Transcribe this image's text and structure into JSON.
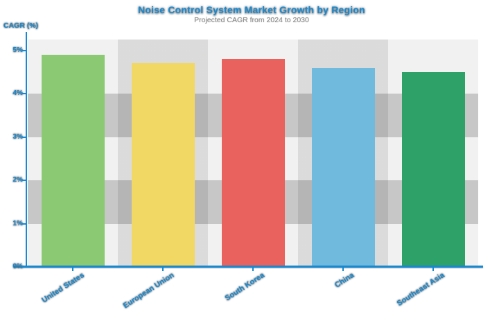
{
  "header": {
    "title": "Noise Control System Market Growth by Region",
    "subtitle": "Projected CAGR from 2024 to 2030"
  },
  "chart_data": {
    "type": "bar",
    "title": "Noise Control System Market Growth by Region",
    "subtitle": "Projected CAGR from 2024 to 2030",
    "ylabel": "CAGR (%)",
    "xlabel": "",
    "categories": [
      "United States",
      "European Union",
      "South Korea",
      "China",
      "Southeast Asia"
    ],
    "values": [
      4.9,
      4.7,
      4.8,
      4.6,
      4.5
    ],
    "unit": "%",
    "bar_colors": [
      "#8BCA72",
      "#F1D865",
      "#EA625D",
      "#70BADD",
      "#2EA169"
    ],
    "yticks": [
      "5%",
      "4%",
      "3%",
      "2%",
      "1%",
      "0%"
    ],
    "ytick_values": [
      5,
      4,
      3,
      2,
      1,
      0
    ],
    "ylim": [
      0,
      5.25
    ],
    "grid": "horizontal striped bands, alternating light and dark gray",
    "legend_position": "none",
    "accent_color": "#1589D3",
    "stripe_light": "#F1F1F1",
    "stripe_dark": "#C7C7C7"
  }
}
